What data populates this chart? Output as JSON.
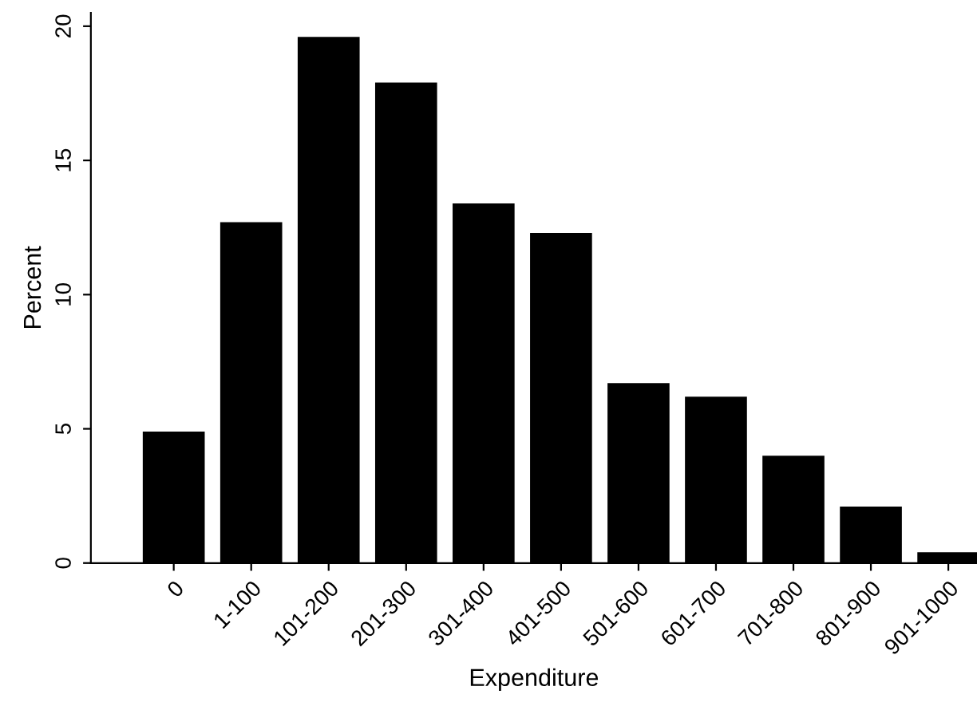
{
  "chart_data": {
    "type": "bar",
    "xlabel": "Expenditure",
    "ylabel": "Percent",
    "categories": [
      "0",
      "1-100",
      "101-200",
      "201-300",
      "301-400",
      "401-500",
      "501-600",
      "601-700",
      "701-800",
      "801-900",
      "901-1000"
    ],
    "values": [
      4.9,
      12.7,
      19.6,
      17.9,
      13.4,
      12.3,
      6.7,
      6.2,
      4.0,
      2.1,
      0.4
    ],
    "color": "#000000",
    "ylim": [
      0,
      20.5
    ],
    "yticks": [
      0,
      5,
      10,
      15,
      20
    ],
    "grid": false,
    "legend": false
  }
}
